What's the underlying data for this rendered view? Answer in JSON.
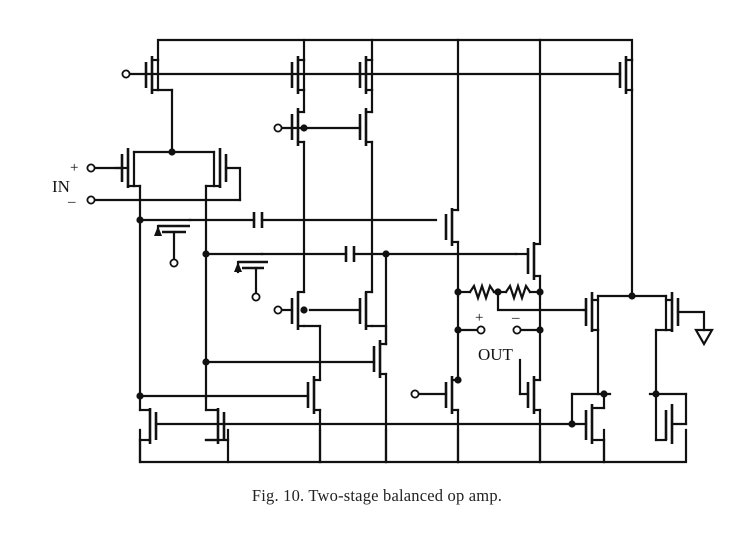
{
  "figure": {
    "caption": "Fig. 10.   Two-stage balanced op amp.",
    "labels": {
      "in": "IN",
      "in_plus": "+",
      "in_minus": "–",
      "out": "OUT",
      "out_plus": "+",
      "out_minus": "–"
    }
  }
}
